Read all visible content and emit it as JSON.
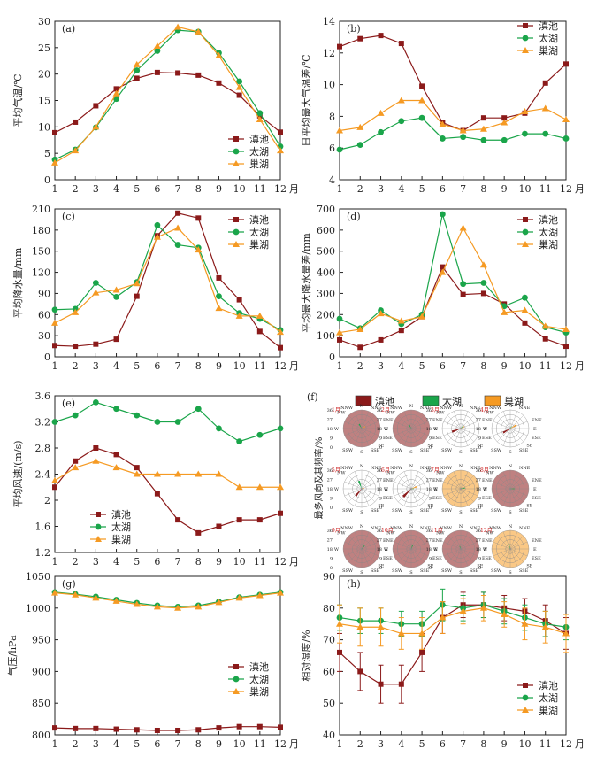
{
  "colors": {
    "dianchi": "#8b1a1a",
    "taihu": "#1aa54a",
    "chaohu": "#f59a23",
    "axis": "#222222"
  },
  "legend_names": [
    "滇池",
    "太湖",
    "巢湖"
  ],
  "month_unit": "月",
  "chart_data": [
    {
      "panel": "(a)",
      "type": "line",
      "ylabel": "平均气温/℃",
      "ylim": [
        0,
        30
      ],
      "yticks": [
        0,
        5,
        10,
        15,
        20,
        25,
        30
      ],
      "x": [
        1,
        2,
        3,
        4,
        5,
        6,
        7,
        8,
        9,
        10,
        11,
        12
      ],
      "legend": "bottom-right",
      "series": [
        {
          "name": "滇池",
          "values": [
            8.9,
            10.9,
            14.0,
            17.2,
            19.2,
            20.3,
            20.2,
            19.8,
            18.3,
            16.0,
            12.1,
            9.0
          ]
        },
        {
          "name": "太湖",
          "values": [
            3.8,
            5.7,
            9.9,
            15.3,
            20.7,
            24.4,
            28.3,
            28.0,
            24.0,
            18.6,
            12.6,
            6.3
          ]
        },
        {
          "name": "巢湖",
          "values": [
            3.2,
            5.5,
            10.0,
            16.3,
            21.8,
            25.3,
            28.9,
            28.0,
            23.5,
            17.5,
            11.4,
            5.5
          ]
        }
      ]
    },
    {
      "panel": "(b)",
      "type": "line",
      "ylabel": "日平均最大气温差/℃",
      "ylim": [
        4,
        14
      ],
      "yticks": [
        4,
        6,
        8,
        10,
        12,
        14
      ],
      "x": [
        1,
        2,
        3,
        4,
        5,
        6,
        7,
        8,
        9,
        10,
        11,
        12
      ],
      "legend": "top-right",
      "series": [
        {
          "name": "滇池",
          "values": [
            12.4,
            12.9,
            13.1,
            12.6,
            9.9,
            7.6,
            7.1,
            7.9,
            7.9,
            8.2,
            10.1,
            11.3
          ]
        },
        {
          "name": "太湖",
          "values": [
            5.9,
            6.2,
            7.0,
            7.7,
            7.9,
            6.6,
            6.7,
            6.5,
            6.5,
            6.9,
            6.9,
            6.6
          ]
        },
        {
          "name": "巢湖",
          "values": [
            7.1,
            7.3,
            8.2,
            9.0,
            9.0,
            7.5,
            7.1,
            7.2,
            7.6,
            8.3,
            8.5,
            7.8
          ]
        }
      ]
    },
    {
      "panel": "(c)",
      "type": "line",
      "ylabel": "平均降水量/mm",
      "ylim": [
        0,
        210
      ],
      "yticks": [
        0,
        30,
        60,
        90,
        120,
        150,
        180,
        210
      ],
      "x": [
        1,
        2,
        3,
        4,
        5,
        6,
        7,
        8,
        9,
        10,
        11,
        12
      ],
      "legend": "top-right",
      "series": [
        {
          "name": "滇池",
          "values": [
            16,
            15,
            18,
            25,
            86,
            172,
            204,
            197,
            112,
            81,
            36,
            13
          ]
        },
        {
          "name": "太湖",
          "values": [
            67,
            68,
            105,
            85,
            106,
            187,
            159,
            155,
            86,
            62,
            54,
            38
          ]
        },
        {
          "name": "巢湖",
          "values": [
            48,
            63,
            91,
            95,
            104,
            170,
            183,
            152,
            69,
            58,
            58,
            35
          ]
        }
      ]
    },
    {
      "panel": "(d)",
      "type": "line",
      "ylabel": "平均最大降水量差/mm",
      "ylim": [
        0,
        700
      ],
      "yticks": [
        0,
        100,
        200,
        300,
        400,
        500,
        600,
        700
      ],
      "x": [
        1,
        2,
        3,
        4,
        5,
        6,
        7,
        8,
        9,
        10,
        11,
        12
      ],
      "legend": "top-right",
      "series": [
        {
          "name": "滇池",
          "values": [
            80,
            45,
            80,
            125,
            190,
            425,
            295,
            300,
            250,
            160,
            85,
            50
          ]
        },
        {
          "name": "太湖",
          "values": [
            180,
            135,
            220,
            155,
            200,
            675,
            345,
            350,
            240,
            280,
            140,
            115
          ]
        },
        {
          "name": "巢湖",
          "values": [
            115,
            130,
            205,
            170,
            190,
            400,
            610,
            435,
            210,
            220,
            145,
            130
          ]
        }
      ]
    },
    {
      "panel": "(e)",
      "type": "line",
      "ylabel": "平均风速/(m/s)",
      "ylim": [
        1.2,
        3.6
      ],
      "yticks": [
        1.2,
        1.6,
        2.0,
        2.4,
        2.8,
        3.2,
        3.6
      ],
      "x": [
        1,
        2,
        3,
        4,
        5,
        6,
        7,
        8,
        9,
        10,
        11,
        12
      ],
      "legend": "middle-left",
      "series": [
        {
          "name": "滇池",
          "values": [
            2.2,
            2.6,
            2.8,
            2.7,
            2.5,
            2.1,
            1.7,
            1.5,
            1.6,
            1.7,
            1.7,
            1.8
          ]
        },
        {
          "name": "太湖",
          "values": [
            3.2,
            3.3,
            3.5,
            3.4,
            3.3,
            3.2,
            3.2,
            3.4,
            3.1,
            2.9,
            3.0,
            3.1
          ]
        },
        {
          "name": "巢湖",
          "values": [
            2.3,
            2.5,
            2.6,
            2.5,
            2.4,
            2.4,
            2.4,
            2.4,
            2.4,
            2.2,
            2.2,
            2.2
          ]
        }
      ]
    },
    {
      "panel": "(f)",
      "type": "rose",
      "ylabel": "最多风向及其频率/%",
      "rticks": [
        "36",
        "27",
        "18",
        "9",
        "0"
      ],
      "directions": [
        "N",
        "NNE",
        "NE",
        "ENE",
        "E",
        "ESE",
        "SE",
        "SSE",
        "S",
        "SSW",
        "SW",
        "WSW",
        "W",
        "WNW",
        "NW",
        "NNW"
      ],
      "month_labels": [
        "1月",
        "2月",
        "3月",
        "4月",
        "5月",
        "6月",
        "7月",
        "8月",
        "9月",
        "10月",
        "11月",
        "12月"
      ],
      "months": [
        {
          "bg": "dianchi",
          "spikes": [
            [
              "taihu",
              330,
              10
            ],
            [
              "chaohu",
              60,
              8
            ]
          ]
        },
        {
          "bg": "dianchi",
          "spikes": [
            [
              "taihu",
              330,
              8
            ]
          ]
        },
        {
          "bg": "none",
          "spikes": [
            [
              "dianchi",
              250,
              18
            ],
            [
              "taihu",
              40,
              5
            ],
            [
              "chaohu",
              60,
              8
            ]
          ]
        },
        {
          "bg": "none",
          "spikes": [
            [
              "dianchi",
              240,
              16
            ],
            [
              "chaohu",
              60,
              14
            ],
            [
              "taihu",
              30,
              5
            ]
          ]
        },
        {
          "bg": "none",
          "spikes": [
            [
              "dianchi",
              220,
              18
            ],
            [
              "taihu",
              340,
              16
            ],
            [
              "chaohu",
              80,
              5
            ]
          ]
        },
        {
          "bg": "none",
          "spikes": [
            [
              "dianchi",
              225,
              22
            ],
            [
              "chaohu",
              70,
              12
            ],
            [
              "taihu",
              90,
              5
            ]
          ]
        },
        {
          "bg": "chaohu",
          "spikes": [
            [
              "taihu",
              80,
              8
            ]
          ]
        },
        {
          "bg": "dianchi",
          "spikes": [
            [
              "taihu",
              90,
              8
            ]
          ]
        },
        {
          "bg": "dianchi",
          "spikes": [
            [
              "taihu",
              40,
              8
            ]
          ]
        },
        {
          "bg": "dianchi",
          "spikes": [
            [
              "taihu",
              20,
              8
            ]
          ]
        },
        {
          "bg": "dianchi",
          "spikes": [
            [
              "taihu",
              340,
              6
            ]
          ]
        },
        {
          "bg": "chaohu",
          "spikes": [
            [
              "taihu",
              340,
              10
            ]
          ]
        }
      ],
      "legend": "top"
    },
    {
      "panel": "(g)",
      "type": "line",
      "ylabel": "气压/hPa",
      "ylim": [
        800,
        1050
      ],
      "yticks": [
        800,
        850,
        900,
        950,
        1000,
        1050
      ],
      "x": [
        1,
        2,
        3,
        4,
        5,
        6,
        7,
        8,
        9,
        10,
        11,
        12
      ],
      "legend": "middle-right",
      "series": [
        {
          "name": "滇池",
          "values": [
            811,
            810,
            810,
            809,
            808,
            807,
            807,
            808,
            811,
            813,
            813,
            812
          ]
        },
        {
          "name": "太湖",
          "values": [
            1025,
            1022,
            1018,
            1013,
            1008,
            1004,
            1002,
            1004,
            1010,
            1017,
            1021,
            1025
          ]
        },
        {
          "name": "巢湖",
          "values": [
            1024,
            1021,
            1016,
            1011,
            1006,
            1002,
            1000,
            1002,
            1009,
            1016,
            1020,
            1024
          ]
        }
      ]
    },
    {
      "panel": "(h)",
      "type": "line",
      "ylabel": "相对湿度/%",
      "ylim": [
        40,
        90
      ],
      "yticks": [
        40,
        50,
        60,
        70,
        80,
        90
      ],
      "x": [
        1,
        2,
        3,
        4,
        5,
        6,
        7,
        8,
        9,
        10,
        11,
        12
      ],
      "legend": "bottom-right",
      "error_bars": true,
      "series": [
        {
          "name": "滇池",
          "values": [
            66,
            60,
            56,
            56,
            66,
            77,
            81,
            81,
            80,
            79,
            76,
            72
          ],
          "err": [
            6,
            6,
            6,
            6,
            6,
            5,
            4,
            4,
            4,
            4,
            5,
            5
          ]
        },
        {
          "name": "太湖",
          "values": [
            77,
            76,
            76,
            75,
            75,
            81,
            80,
            81,
            79,
            77,
            75,
            74
          ],
          "err": [
            4,
            4,
            4,
            4,
            4,
            5,
            4,
            4,
            4,
            4,
            4,
            4
          ]
        },
        {
          "name": "巢湖",
          "values": [
            75,
            74,
            74,
            72,
            72,
            77,
            79,
            80,
            78,
            75,
            74,
            72
          ],
          "err": [
            6,
            6,
            6,
            5,
            5,
            5,
            4,
            4,
            4,
            5,
            5,
            6
          ]
        }
      ]
    }
  ]
}
